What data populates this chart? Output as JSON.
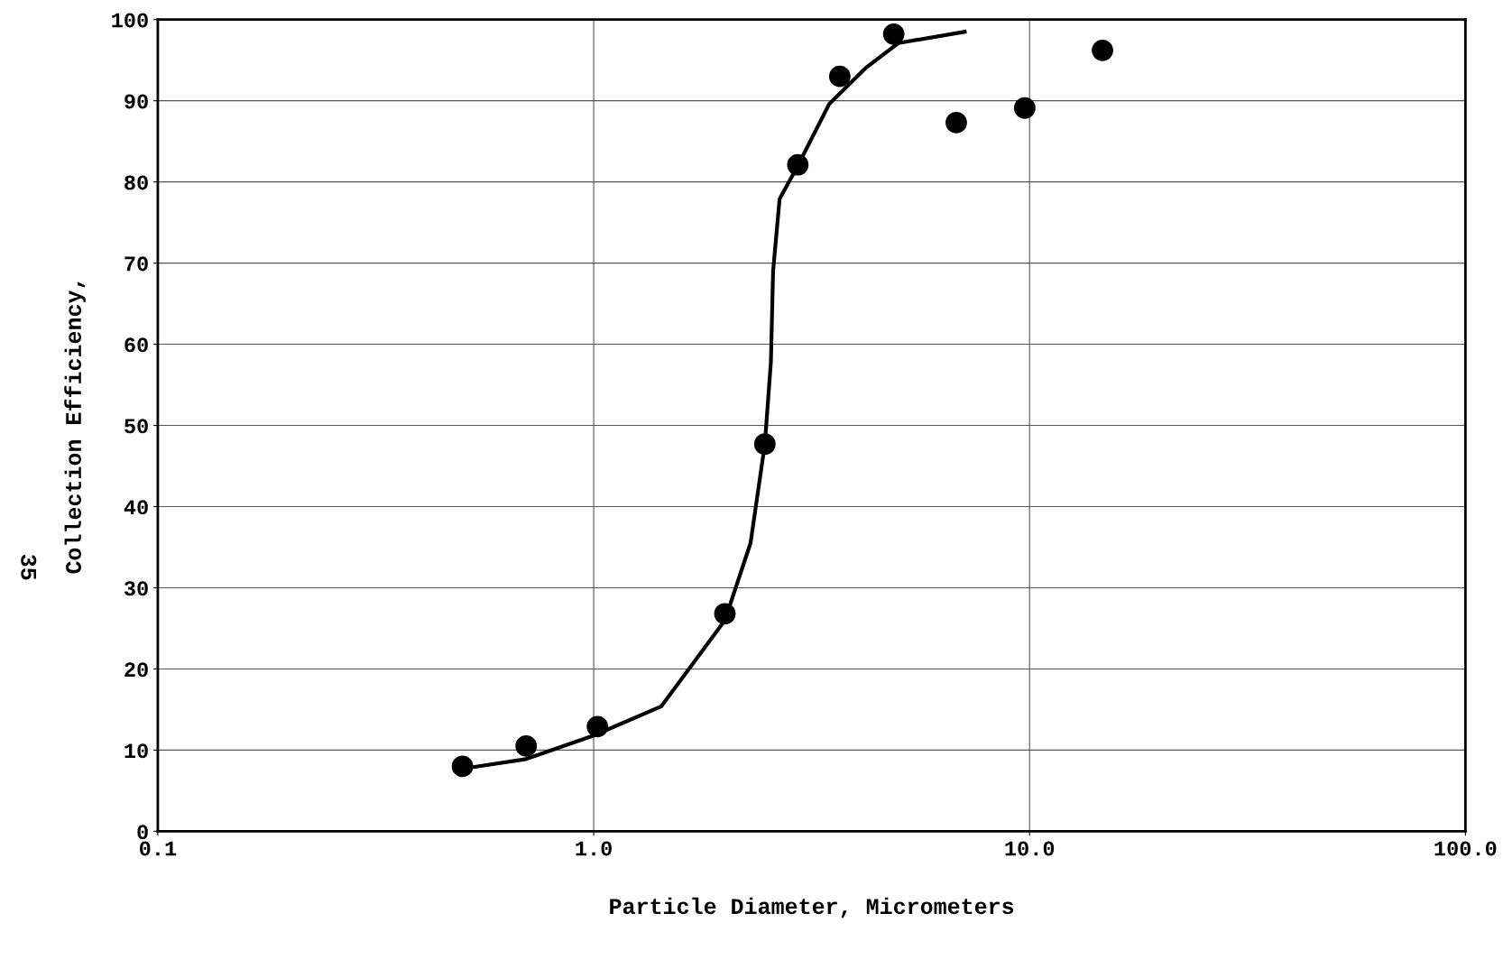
{
  "chart_data": {
    "type": "scatter",
    "xlabel": "Particle Diameter, Micrometers",
    "ylabel": "Collection Efficiency,",
    "log": "x",
    "grid": true,
    "marker": "circle",
    "xlim": [
      0.1,
      100
    ],
    "xticks": [
      {
        "value": 0.1,
        "label": "0.1"
      },
      {
        "value": 1,
        "label": "1.0"
      },
      {
        "value": 10,
        "label": "10.0"
      },
      {
        "value": 100,
        "label": "100.0"
      }
    ],
    "ylim": [
      0,
      100
    ],
    "yticks": [
      0,
      10,
      20,
      30,
      40,
      50,
      60,
      70,
      80,
      90,
      100
    ],
    "annotations": [
      "35"
    ],
    "series": [
      {
        "color": "#000000",
        "x": [
          0.5,
          0.7,
          1.02,
          2.0,
          2.47,
          2.94,
          3.67,
          4.88,
          6.79,
          9.75,
          14.7
        ],
        "values": [
          8.0,
          10.5,
          12.9,
          26.8,
          47.7,
          82.1,
          93.0,
          98.2,
          87.3,
          89.1,
          96.2
        ]
      },
      {
        "type": "line",
        "color": "#000000",
        "marker": "none",
        "line_style": "solid",
        "x": [
          0.485,
          0.7,
          1.0,
          1.43,
          2.0,
          2.29,
          2.47,
          2.55,
          2.58,
          2.67,
          2.94,
          3.47,
          4.2,
          5.0,
          7.1
        ],
        "values": [
          7.6,
          8.9,
          11.8,
          15.4,
          26,
          35.5,
          47.7,
          57.8,
          69,
          77.9,
          82,
          89.6,
          94,
          97.1,
          98.5
        ]
      }
    ]
  }
}
